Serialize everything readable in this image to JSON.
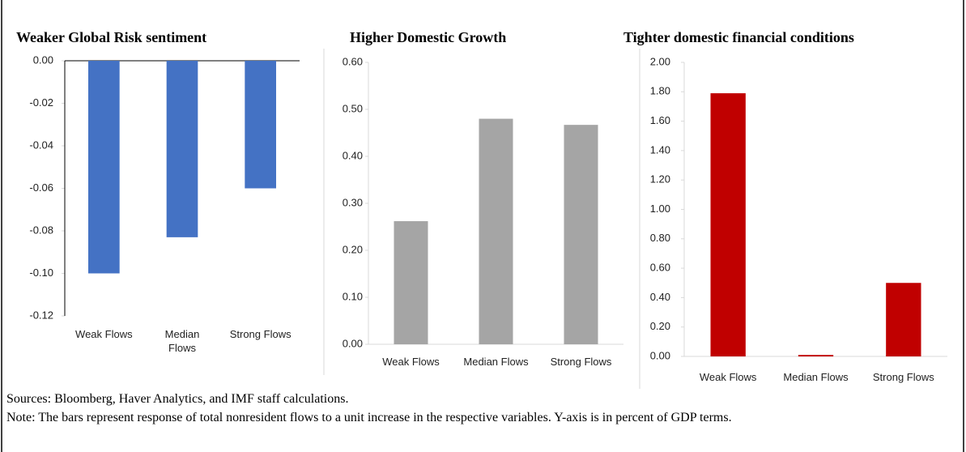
{
  "chart_data": [
    {
      "type": "bar",
      "title": "Weaker Global Risk sentiment",
      "categories": [
        "Weak Flows",
        "Median Flows",
        "Strong Flows"
      ],
      "values": [
        -0.1,
        -0.083,
        -0.06
      ],
      "color": "#4472c4",
      "ylim": [
        -0.12,
        0
      ],
      "yticks": [
        {
          "value": 0,
          "label": "0.00"
        },
        {
          "value": -0.02,
          "label": "-0.02"
        },
        {
          "value": -0.04,
          "label": "-0.04"
        },
        {
          "value": -0.06,
          "label": "-0.06"
        },
        {
          "value": -0.08,
          "label": "-0.08"
        },
        {
          "value": -0.1,
          "label": "-0.10"
        },
        {
          "value": -0.12,
          "label": "-0.12"
        }
      ],
      "grid": false
    },
    {
      "type": "bar",
      "title": "Higher Domestic Growth",
      "categories": [
        "Weak Flows",
        "Median Flows",
        "Strong Flows"
      ],
      "values": [
        0.262,
        0.48,
        0.467
      ],
      "color": "#a5a5a5",
      "ylim": [
        0,
        0.6
      ],
      "yticks": [
        {
          "value": 0,
          "label": "0.00"
        },
        {
          "value": 0.1,
          "label": "0.10"
        },
        {
          "value": 0.2,
          "label": "0.20"
        },
        {
          "value": 0.3,
          "label": "0.30"
        },
        {
          "value": 0.4,
          "label": "0.40"
        },
        {
          "value": 0.5,
          "label": "0.50"
        },
        {
          "value": 0.6,
          "label": "0.60"
        }
      ],
      "grid": false
    },
    {
      "type": "bar",
      "title": "Tighter domestic financial conditions",
      "categories": [
        "Weak Flows",
        "Median Flows",
        "Strong Flows"
      ],
      "values": [
        1.79,
        0.01,
        0.5
      ],
      "color": "#c00000",
      "ylim": [
        0,
        2
      ],
      "yticks": [
        {
          "value": 0,
          "label": "0.00"
        },
        {
          "value": 0.2,
          "label": "0.20"
        },
        {
          "value": 0.4,
          "label": "0.40"
        },
        {
          "value": 0.6,
          "label": "0.60"
        },
        {
          "value": 0.8,
          "label": "0.80"
        },
        {
          "value": 1,
          "label": "1.00"
        },
        {
          "value": 1.2,
          "label": "1.20"
        },
        {
          "value": 1.4,
          "label": "1.40"
        },
        {
          "value": 1.6,
          "label": "1.60"
        },
        {
          "value": 1.8,
          "label": "1.80"
        },
        {
          "value": 2,
          "label": "2.00"
        }
      ],
      "grid": false
    }
  ],
  "sources": "Sources: Bloomberg, Haver Analytics, and IMF staff calculations.",
  "note": "Note: The bars represent response of total nonresident flows to a unit increase in the respective variables. Y-axis is in percent of GDP terms."
}
